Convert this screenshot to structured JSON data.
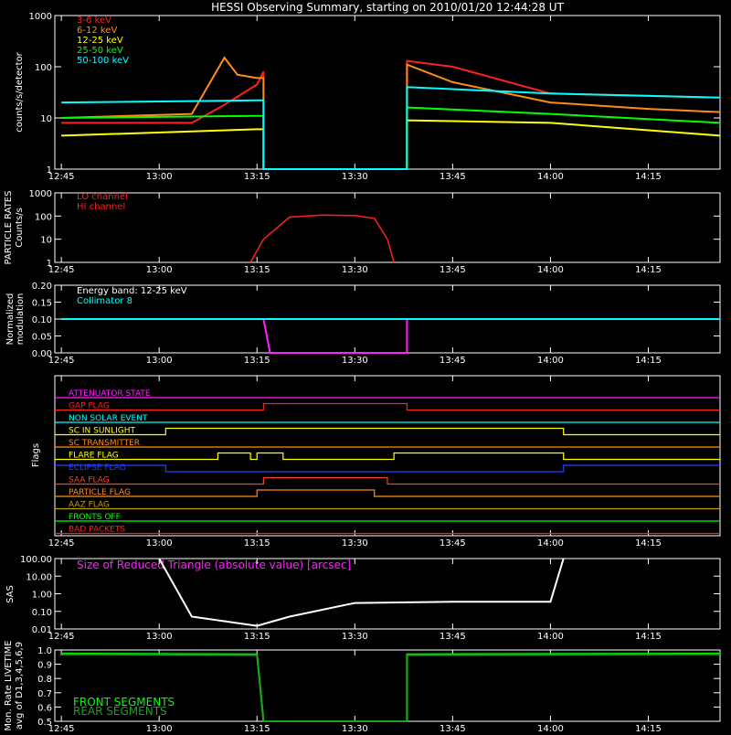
{
  "title": "HESSI Observing Summary, starting on 2010/01/20 12:44:28 UT",
  "x_tick_labels": [
    "12:45",
    "13:00",
    "13:15",
    "13:30",
    "13:45",
    "14:00",
    "14:15"
  ],
  "colors": {
    "axis": "#ffffff",
    "lc_3_6": "#ff2020",
    "lc_6_12": "#ff8c1a",
    "lc_12_25": "#ffff00",
    "lc_25_50": "#00ff00",
    "lc_50_100": "#00ffff",
    "magenta": "#ff20ff",
    "particle": "#ff2020"
  },
  "panels": {
    "lightcurves": {
      "ylabel": "counts/s/detector",
      "tick_labels": [
        "1",
        "10",
        "100",
        "1000"
      ],
      "legend": [
        "3-6 keV",
        "6-12 keV",
        "12-25 keV",
        "25-50 keV",
        "50-100 keV"
      ]
    },
    "particle": {
      "ylabel_line1": "PARTICLE RATES",
      "ylabel_line2": "Counts/s",
      "tick_labels": [
        "1",
        "10",
        "100",
        "1000"
      ],
      "legend": [
        "LO channel",
        "HI channel"
      ]
    },
    "modulation": {
      "ylabel_line1": "Normalized",
      "ylabel_line2": "modulation",
      "tick_labels": [
        "0.00",
        "0.05",
        "0.10",
        "0.15",
        "0.20"
      ],
      "legend": [
        "Energy band: 12-25 keV",
        "Collimator 8"
      ]
    },
    "flags": {
      "ylabel": "Flags",
      "items": [
        {
          "label": "ATTENUATOR STATE",
          "color": "#ff20ff"
        },
        {
          "label": "GAP FLAG",
          "color": "#ff2020"
        },
        {
          "label": "NON SOLAR EVENT",
          "color": "#00ffff"
        },
        {
          "label": "SC IN SUNLIGHT",
          "color": "#ffff00"
        },
        {
          "label": "SC TRANSMITTER",
          "color": "#ff8c1a"
        },
        {
          "label": "FLARE FLAG",
          "color": "#ffff00"
        },
        {
          "label": "ECLIPSE FLAG",
          "color": "#2040ff"
        },
        {
          "label": "SAA FLAG",
          "color": "#ff4020"
        },
        {
          "label": "PARTICLE FLAG",
          "color": "#ff8c1a"
        },
        {
          "label": "AAZ FLAG",
          "color": "#c0a000"
        },
        {
          "label": "FRONTS OFF",
          "color": "#00ff00"
        },
        {
          "label": "BAD PACKETS",
          "color": "#ff2020"
        }
      ]
    },
    "sas": {
      "ylabel": "SAS",
      "tick_labels": [
        "0.01",
        "0.10",
        "1.00",
        "10.00",
        "100.00"
      ],
      "annotation": "Size of Reduced Triangle (absolute value) [arcsec]"
    },
    "livetime": {
      "ylabel_line1": "Mon. Rate LIVETIME",
      "ylabel_line2": "avg of D1,3,4,5,6,9",
      "tick_labels": [
        "0.5",
        "0.6",
        "0.7",
        "0.8",
        "0.9",
        "1.0"
      ],
      "legend": [
        "FRONT SEGMENTS",
        "REAR SEGMENTS"
      ]
    }
  },
  "chart_data": [
    {
      "type": "line",
      "yscale": "log",
      "ylim": [
        1,
        1000
      ],
      "xlim": [
        "12:45",
        "14:26"
      ],
      "ylabel": "counts/s/detector",
      "series": [
        {
          "name": "3-6 keV",
          "color": "#ff2020",
          "x": [
            "12:45",
            "13:05",
            "13:10",
            "13:15",
            "13:16",
            "13:16",
            "13:38",
            "13:38",
            "13:45",
            "14:00",
            "14:15",
            "14:26"
          ],
          "values": [
            8,
            8,
            18,
            45,
            80,
            1,
            1,
            130,
            100,
            30,
            27,
            25
          ]
        },
        {
          "name": "6-12 keV",
          "color": "#ff8c1a",
          "x": [
            "12:45",
            "13:05",
            "13:10",
            "13:12",
            "13:15",
            "13:16",
            "13:16",
            "13:38",
            "13:38",
            "13:45",
            "14:00",
            "14:15",
            "14:26"
          ],
          "values": [
            10,
            12,
            150,
            70,
            60,
            60,
            1,
            1,
            110,
            50,
            20,
            15,
            13
          ]
        },
        {
          "name": "12-25 keV",
          "color": "#ffff00",
          "x": [
            "12:45",
            "13:15",
            "13:16",
            "13:16",
            "13:38",
            "13:38",
            "14:00",
            "14:26"
          ],
          "values": [
            4.5,
            6,
            6,
            1,
            1,
            9,
            8,
            4.5
          ]
        },
        {
          "name": "25-50 keV",
          "color": "#00ff00",
          "x": [
            "12:45",
            "13:15",
            "13:16",
            "13:16",
            "13:38",
            "13:38",
            "14:00",
            "14:26"
          ],
          "values": [
            10,
            11,
            11,
            1,
            1,
            16,
            12,
            8
          ]
        },
        {
          "name": "50-100 keV",
          "color": "#00ffff",
          "x": [
            "12:45",
            "13:15",
            "13:16",
            "13:16",
            "13:38",
            "13:38",
            "14:00",
            "14:26"
          ],
          "values": [
            20,
            22,
            22,
            1,
            1,
            40,
            30,
            25
          ]
        }
      ]
    },
    {
      "type": "line",
      "yscale": "log",
      "ylim": [
        1,
        1000
      ],
      "series": [
        {
          "name": "HI channel",
          "color": "#ff2020",
          "x": [
            "13:14",
            "13:16",
            "13:20",
            "13:25",
            "13:30",
            "13:33",
            "13:35",
            "13:36"
          ],
          "values": [
            1,
            10,
            90,
            110,
            105,
            80,
            10,
            1
          ]
        }
      ]
    },
    {
      "type": "line",
      "ylim": [
        0,
        0.2
      ],
      "series": [
        {
          "name": "Energy band: 12-25 keV",
          "color": "#ff20ff",
          "x": [
            "12:45",
            "13:16",
            "13:17",
            "13:38",
            "13:38",
            "14:26"
          ],
          "values": [
            0.1,
            0.1,
            0.0,
            0.0,
            0.1,
            0.1
          ]
        },
        {
          "name": "Collimator 8",
          "color": "#00ffff",
          "x": [
            "12:45",
            "13:16",
            "13:38",
            "14:26"
          ],
          "values": [
            0.1,
            0.1,
            0.1,
            0.1
          ]
        }
      ]
    },
    {
      "type": "line",
      "yscale": "log",
      "ylim": [
        0.01,
        100
      ],
      "series": [
        {
          "name": "Size of Reduced Triangle (absolute value) [arcsec]",
          "color": "#ffffff",
          "x": [
            "13:00",
            "13:05",
            "13:15",
            "13:20",
            "13:30",
            "13:45",
            "14:00",
            "14:02"
          ],
          "values": [
            100,
            0.05,
            0.015,
            0.05,
            0.3,
            0.35,
            0.35,
            100
          ]
        }
      ]
    },
    {
      "type": "line",
      "ylim": [
        0.5,
        1.0
      ],
      "series": [
        {
          "name": "FRONT SEGMENTS",
          "color": "#00ff00",
          "x": [
            "12:45",
            "13:15",
            "13:16",
            "13:38",
            "13:38",
            "14:26"
          ],
          "values": [
            0.975,
            0.97,
            0.5,
            0.5,
            0.97,
            0.975
          ]
        },
        {
          "name": "REAR SEGMENTS",
          "color": "#20a020",
          "x": [
            "12:45",
            "13:15",
            "13:16",
            "13:38",
            "13:38",
            "14:26"
          ],
          "values": [
            0.97,
            0.965,
            0.5,
            0.5,
            0.965,
            0.97
          ]
        }
      ]
    }
  ]
}
